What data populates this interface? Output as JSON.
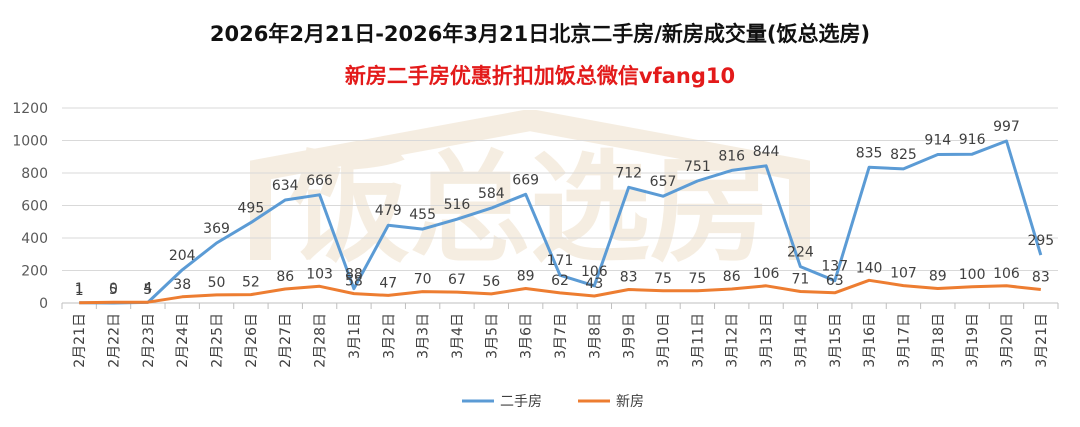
{
  "chart_data": {
    "type": "line",
    "title": "2026年2月21日-2026年3月21日北京二手房/新房成交量(饭总选房)",
    "subtitle": "新房二手房优惠折扣加饭总微信vfang10",
    "watermark_text": "饭总选房",
    "categories": [
      "2月21日",
      "2月22日",
      "2月23日",
      "2月24日",
      "2月25日",
      "2月26日",
      "2月27日",
      "2月28日",
      "3月1日",
      "3月2日",
      "3月3日",
      "3月4日",
      "3月5日",
      "3月6日",
      "3月7日",
      "3月8日",
      "3月9日",
      "3月10日",
      "3月11日",
      "3月12日",
      "3月13日",
      "3月14日",
      "3月15日",
      "3月16日",
      "3月17日",
      "3月18日",
      "3月19日",
      "3月20日",
      "3月21日"
    ],
    "series": [
      {
        "name": "二手房",
        "color": "#5b9bd5",
        "values": [
          1,
          0,
          4,
          204,
          369,
          495,
          634,
          666,
          88,
          479,
          455,
          516,
          584,
          669,
          171,
          106,
          712,
          657,
          751,
          816,
          844,
          224,
          137,
          835,
          825,
          914,
          916,
          997,
          295
        ]
      },
      {
        "name": "新房",
        "color": "#ed7d31",
        "values": [
          1,
          5,
          5,
          38,
          50,
          52,
          86,
          103,
          58,
          47,
          70,
          67,
          56,
          89,
          62,
          43,
          83,
          75,
          75,
          86,
          106,
          71,
          63,
          140,
          107,
          89,
          100,
          106,
          83
        ]
      }
    ],
    "ylim": [
      0,
      1200
    ],
    "yticks": [
      0,
      200,
      400,
      600,
      800,
      1000,
      1200
    ],
    "grid": true,
    "legend": "bottom-center"
  }
}
